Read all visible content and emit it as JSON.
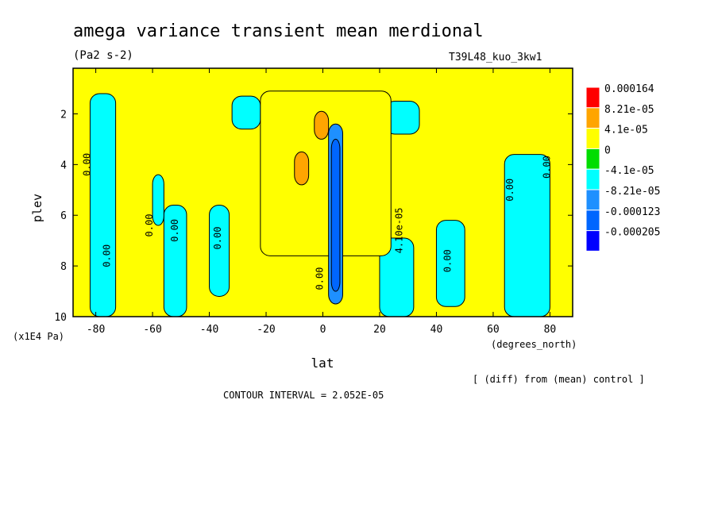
{
  "title": "amega variance transient mean merdional",
  "units": "(Pa2 s-2)",
  "run_label": "T39L48_kuo_3kw1",
  "diff_note": "[ (diff) from (mean) control ]",
  "contour_interval": "CONTOUR INTERVAL = 2.052E-05",
  "chart_data": {
    "type": "heatmap",
    "xlabel": "lat",
    "xunits": "(degrees_north)",
    "ylabel": "plev",
    "yunits": "(x1E4 Pa)",
    "xlim": [
      -88,
      88
    ],
    "ylim": [
      0.2,
      10
    ],
    "y_inverted": true,
    "x_ticks": [
      -80,
      -60,
      -40,
      -20,
      0,
      20,
      40,
      60,
      80
    ],
    "x_tick_labels": [
      "-80",
      "-60",
      "-40",
      "-20",
      "0",
      "20",
      "40",
      "60",
      "80"
    ],
    "y_ticks": [
      2,
      4,
      6,
      8,
      10
    ],
    "y_tick_labels": [
      "2",
      "4",
      "6",
      "8",
      "10"
    ],
    "legend": {
      "placement": "right",
      "levels": [
        "0.000164",
        "8.21e-05",
        "4.1e-05",
        "0",
        "-4.1e-05",
        "-8.21e-05",
        "-0.000123",
        "-0.000205"
      ],
      "colors": [
        "#ff0000",
        "#ffa500",
        "#ffff00",
        "#00dd00",
        "#00ffff",
        "#1e90ff",
        "#0066ff",
        "#0000ff"
      ]
    },
    "contour_labels": [
      {
        "text": "0.00",
        "lat": -82,
        "plev": 4.0
      },
      {
        "text": "0.00",
        "lat": -75,
        "plev": 7.6
      },
      {
        "text": "0.00",
        "lat": -60,
        "plev": 6.4
      },
      {
        "text": "0.00",
        "lat": -51,
        "plev": 6.6
      },
      {
        "text": "0.00",
        "lat": -36,
        "plev": 6.9
      },
      {
        "text": "0.00",
        "lat": 0,
        "plev": 8.5
      },
      {
        "text": "4.10e-05",
        "lat": 28,
        "plev": 6.6
      },
      {
        "text": "0.00",
        "lat": 45,
        "plev": 7.8
      },
      {
        "text": "0.00",
        "lat": 67,
        "plev": 5.0
      },
      {
        "text": "0.00",
        "lat": 80,
        "plev": 4.1
      }
    ],
    "regions": [
      {
        "level": "-4.1e-05",
        "lat": [
          -82,
          -73
        ],
        "plev": [
          1.2,
          10
        ]
      },
      {
        "level": "-4.1e-05",
        "lat": [
          -56,
          -48
        ],
        "plev": [
          5.6,
          10
        ]
      },
      {
        "level": "-4.1e-05",
        "lat": [
          -40,
          -33
        ],
        "plev": [
          5.6,
          9.2
        ]
      },
      {
        "level": "-4.1e-05",
        "lat": [
          -60,
          -56
        ],
        "plev": [
          4.4,
          6.4
        ]
      },
      {
        "level": "-4.1e-05",
        "lat": [
          -32,
          -22
        ],
        "plev": [
          1.3,
          2.6
        ]
      },
      {
        "level": "-4.1e-05",
        "lat": [
          20,
          32
        ],
        "plev": [
          6.9,
          10
        ]
      },
      {
        "level": "-4.1e-05",
        "lat": [
          40,
          50
        ],
        "plev": [
          6.2,
          9.6
        ]
      },
      {
        "level": "-4.1e-05",
        "lat": [
          22,
          34
        ],
        "plev": [
          1.5,
          2.8
        ]
      },
      {
        "level": "-4.1e-05",
        "lat": [
          64,
          80
        ],
        "plev": [
          3.6,
          10
        ]
      },
      {
        "level": "4.1e-05",
        "lat": [
          -22,
          24
        ],
        "plev": [
          1.1,
          7.6
        ]
      },
      {
        "level": "8.21e-05",
        "lat": [
          -10,
          -5
        ],
        "plev": [
          3.5,
          4.8
        ]
      },
      {
        "level": "8.21e-05",
        "lat": [
          -3,
          2
        ],
        "plev": [
          1.9,
          3.0
        ]
      },
      {
        "level": "-8.21e-05",
        "lat": [
          2,
          7
        ],
        "plev": [
          2.4,
          9.5
        ]
      },
      {
        "level": "-0.000123",
        "lat": [
          3,
          6
        ],
        "plev": [
          3.0,
          9.0
        ]
      }
    ]
  }
}
